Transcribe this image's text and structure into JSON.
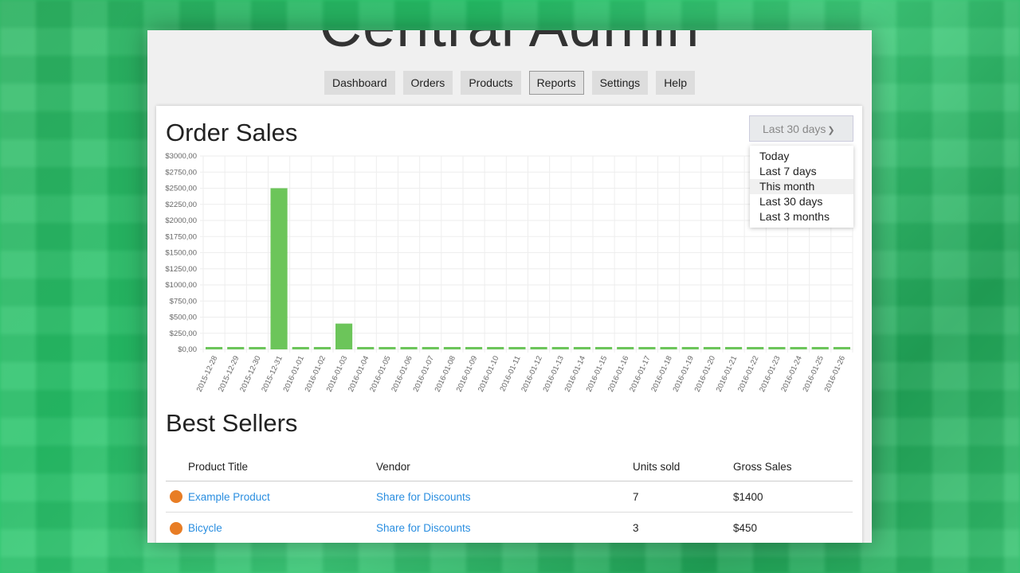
{
  "app": {
    "title": "Central Admin"
  },
  "nav": [
    {
      "label": "Dashboard"
    },
    {
      "label": "Orders"
    },
    {
      "label": "Products"
    },
    {
      "label": "Reports",
      "active": true
    },
    {
      "label": "Settings"
    },
    {
      "label": "Help"
    }
  ],
  "order_sales": {
    "title": "Order Sales",
    "range_selected": "Last 30 days",
    "range_options": [
      "Today",
      "Last 7 days",
      "This month",
      "Last 30 days",
      "Last 3 months"
    ],
    "hovered_option": "This month"
  },
  "chart_data": {
    "type": "bar",
    "title": "Order Sales",
    "bar_color": "#6cc55a",
    "categories": [
      "2015-12-28",
      "2015-12-29",
      "2015-12-30",
      "2015-12-31",
      "2016-01-01",
      "2016-01-02",
      "2016-01-03",
      "2016-01-04",
      "2016-01-05",
      "2016-01-06",
      "2016-01-07",
      "2016-01-08",
      "2016-01-09",
      "2016-01-10",
      "2016-01-11",
      "2016-01-12",
      "2016-01-13",
      "2016-01-14",
      "2016-01-15",
      "2016-01-16",
      "2016-01-17",
      "2016-01-18",
      "2016-01-19",
      "2016-01-20",
      "2016-01-21",
      "2016-01-22",
      "2016-01-23",
      "2016-01-24",
      "2016-01-25",
      "2016-01-26"
    ],
    "values": [
      0,
      0,
      0,
      2500,
      0,
      0,
      400,
      0,
      0,
      0,
      0,
      0,
      0,
      0,
      0,
      0,
      0,
      0,
      0,
      0,
      0,
      0,
      0,
      0,
      0,
      0,
      0,
      0,
      0,
      0
    ],
    "yticks": [
      "$0,00",
      "$250,00",
      "$500,00",
      "$750,00",
      "$1000,00",
      "$1250,00",
      "$1500,00",
      "$1750,00",
      "$2000,00",
      "$2250,00",
      "$2500,00",
      "$2750,00",
      "$3000,00"
    ],
    "ylim": [
      0,
      3000
    ],
    "grid": true
  },
  "best_sellers": {
    "title": "Best Sellers",
    "columns": [
      "Product Title",
      "Vendor",
      "Units sold",
      "Gross Sales"
    ],
    "rows": [
      {
        "product": "Example Product",
        "vendor": "Share for Discounts",
        "units": "7",
        "gross": "$1400"
      },
      {
        "product": "Bicycle",
        "vendor": "Share for Discounts",
        "units": "3",
        "gross": "$450"
      }
    ]
  }
}
